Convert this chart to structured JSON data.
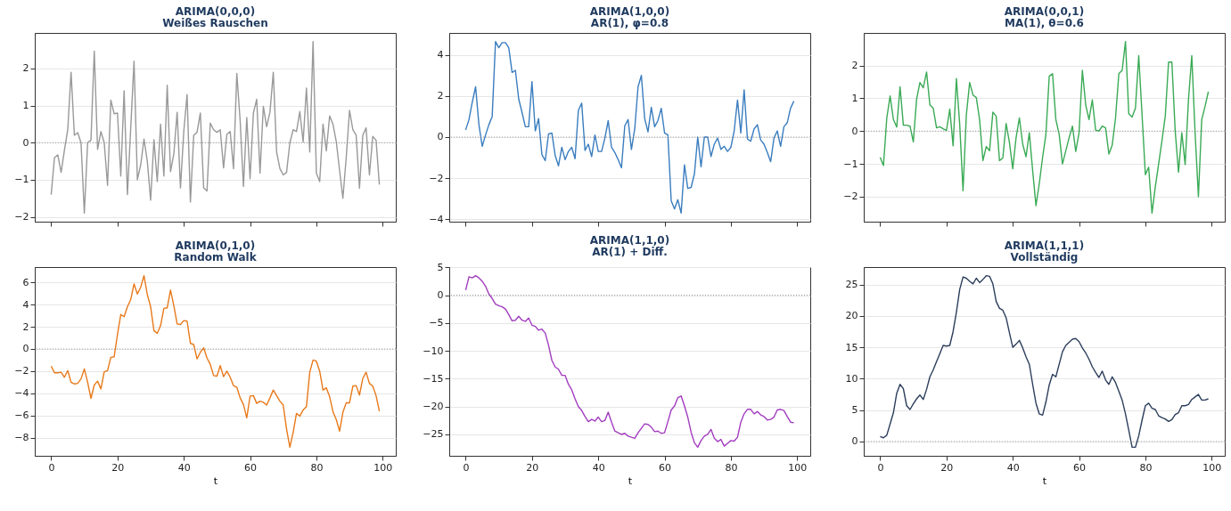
{
  "chart_data": [
    {
      "type": "line",
      "title": "ARIMA(0,0,0)",
      "subtitle": "Weißes Rauschen",
      "tick_labels": "y",
      "grid": "y",
      "xlim": [
        -4.95,
        103.95
      ],
      "xticks": [
        0,
        20,
        40,
        60,
        80,
        100
      ],
      "ylim": [
        -2.13,
        2.96
      ],
      "yticks": [
        -2,
        -1,
        0,
        1,
        2
      ],
      "ref_lines": [
        {
          "axis": "y",
          "value": 0,
          "color": "#888888",
          "line_style": "dotted"
        }
      ],
      "x": [
        0,
        1,
        2,
        3,
        4,
        5,
        6,
        7,
        8,
        9,
        10,
        11,
        12,
        13,
        14,
        15,
        16,
        17,
        18,
        19,
        20,
        21,
        22,
        23,
        24,
        25,
        26,
        27,
        28,
        29,
        30,
        31,
        32,
        33,
        34,
        35,
        36,
        37,
        38,
        39,
        40,
        41,
        42,
        43,
        44,
        45,
        46,
        47,
        48,
        49,
        50,
        51,
        52,
        53,
        54,
        55,
        56,
        57,
        58,
        59,
        60,
        61,
        62,
        63,
        64,
        65,
        66,
        67,
        68,
        69,
        70,
        71,
        72,
        73,
        74,
        75,
        76,
        77,
        78,
        79,
        80,
        81,
        82,
        83,
        84,
        85,
        86,
        87,
        88,
        89,
        90,
        91,
        92,
        93,
        94,
        95,
        96,
        97,
        98,
        99
      ],
      "series": [
        {
          "color": "#999999",
          "values": [
            -1.4,
            -0.4,
            -0.33,
            -0.8,
            -0.2,
            0.35,
            1.9,
            0.2,
            0.27,
            0.0,
            -1.9,
            0.0,
            0.07,
            2.47,
            -0.18,
            0.3,
            0.0,
            -1.15,
            1.15,
            0.78,
            0.8,
            -0.9,
            1.4,
            -1.4,
            0.4,
            2.2,
            -1.0,
            -0.6,
            0.1,
            -0.5,
            -1.55,
            0.08,
            -1.05,
            0.5,
            -0.9,
            1.55,
            -0.78,
            -0.3,
            0.82,
            -1.22,
            0.3,
            1.3,
            -1.6,
            0.2,
            0.28,
            0.8,
            -1.22,
            -1.3,
            0.53,
            0.35,
            0.28,
            0.35,
            -0.68,
            0.23,
            0.3,
            -0.7,
            1.87,
            0.6,
            -1.18,
            0.68,
            -0.97,
            0.8,
            1.17,
            -0.82,
            0.98,
            0.43,
            0.82,
            1.9,
            -0.25,
            -0.7,
            -0.87,
            -0.8,
            0.0,
            0.35,
            0.3,
            0.84,
            0.02,
            1.47,
            -0.25,
            2.73,
            -0.82,
            -1.05,
            0.5,
            -0.22,
            0.72,
            0.5,
            0.03,
            -0.75,
            -1.5,
            -0.4,
            0.87,
            0.35,
            0.2,
            -1.23,
            0.2,
            0.4,
            -0.87,
            0.17,
            0.07,
            -1.13
          ]
        }
      ]
    },
    {
      "type": "line",
      "title": "ARIMA(1,0,0)",
      "subtitle": "AR(1), φ=0.8",
      "tick_labels": "y",
      "grid": "y",
      "xlim": [
        -4.95,
        103.95
      ],
      "xticks": [
        0,
        20,
        40,
        60,
        80,
        100
      ],
      "ylim": [
        -4.12,
        5.07
      ],
      "yticks": [
        -4,
        -2,
        0,
        2,
        4
      ],
      "ref_lines": [
        {
          "axis": "y",
          "value": 0,
          "color": "#888888",
          "line_style": "dotted"
        }
      ],
      "x": [
        0,
        1,
        2,
        3,
        4,
        5,
        6,
        7,
        8,
        9,
        10,
        11,
        12,
        13,
        14,
        15,
        16,
        17,
        18,
        19,
        20,
        21,
        22,
        23,
        24,
        25,
        26,
        27,
        28,
        29,
        30,
        31,
        32,
        33,
        34,
        35,
        36,
        37,
        38,
        39,
        40,
        41,
        42,
        43,
        44,
        45,
        46,
        47,
        48,
        49,
        50,
        51,
        52,
        53,
        54,
        55,
        56,
        57,
        58,
        59,
        60,
        61,
        62,
        63,
        64,
        65,
        66,
        67,
        68,
        69,
        70,
        71,
        72,
        73,
        74,
        75,
        76,
        77,
        78,
        79,
        80,
        81,
        82,
        83,
        84,
        85,
        86,
        87,
        88,
        89,
        90,
        91,
        92,
        93,
        94,
        95,
        96,
        97,
        98,
        99
      ],
      "series": [
        {
          "color": "#3a7dbf",
          "values": [
            0.35,
            0.85,
            1.7,
            2.45,
            0.6,
            -0.45,
            0.1,
            0.6,
            1.0,
            4.65,
            4.35,
            4.6,
            4.6,
            4.35,
            3.15,
            3.25,
            1.85,
            1.2,
            0.5,
            0.5,
            2.7,
            0.3,
            0.9,
            -0.85,
            -1.15,
            0.15,
            0.2,
            -0.9,
            -1.4,
            -0.5,
            -1.1,
            -0.7,
            -0.5,
            -1.05,
            1.3,
            1.65,
            -0.65,
            -0.35,
            -0.95,
            0.1,
            -0.7,
            -0.7,
            -0.05,
            0.8,
            -0.5,
            -0.75,
            -1.1,
            -1.5,
            0.55,
            0.85,
            -0.6,
            0.4,
            2.45,
            3.0,
            0.9,
            0.25,
            1.45,
            0.5,
            0.8,
            1.4,
            0.2,
            0.1,
            -3.1,
            -3.5,
            -3.05,
            -3.7,
            -1.35,
            -2.5,
            -2.45,
            -1.8,
            0.0,
            -1.45,
            0.0,
            0.0,
            -0.95,
            -0.35,
            -0.05,
            -0.6,
            -0.45,
            -0.7,
            -0.5,
            0.3,
            1.8,
            0.2,
            2.3,
            -0.1,
            -0.2,
            0.4,
            0.6,
            -0.15,
            -0.35,
            -0.75,
            -1.2,
            -0.05,
            0.3,
            -0.45,
            0.5,
            0.7,
            1.4,
            1.75
          ]
        }
      ]
    },
    {
      "type": "line",
      "title": "ARIMA(0,0,1)",
      "subtitle": "MA(1), θ=0.6",
      "tick_labels": "y",
      "grid": "y",
      "xlim": [
        -4.95,
        103.95
      ],
      "xticks": [
        0,
        20,
        40,
        60,
        80,
        100
      ],
      "ylim": [
        -2.76,
        2.99
      ],
      "yticks": [
        -2,
        -1,
        0,
        1,
        2
      ],
      "ref_lines": [
        {
          "axis": "y",
          "value": 0,
          "color": "#888888",
          "line_style": "dotted"
        }
      ],
      "x": [
        0,
        1,
        2,
        3,
        4,
        5,
        6,
        7,
        8,
        9,
        10,
        11,
        12,
        13,
        14,
        15,
        16,
        17,
        18,
        19,
        20,
        21,
        22,
        23,
        24,
        25,
        26,
        27,
        28,
        29,
        30,
        31,
        32,
        33,
        34,
        35,
        36,
        37,
        38,
        39,
        40,
        41,
        42,
        43,
        44,
        45,
        46,
        47,
        48,
        49,
        50,
        51,
        52,
        53,
        54,
        55,
        56,
        57,
        58,
        59,
        60,
        61,
        62,
        63,
        64,
        65,
        66,
        67,
        68,
        69,
        70,
        71,
        72,
        73,
        74,
        75,
        76,
        77,
        78,
        79,
        80,
        81,
        82,
        83,
        84,
        85,
        86,
        87,
        88,
        89,
        90,
        91,
        92,
        93,
        94,
        95,
        96,
        97,
        98,
        99
      ],
      "series": [
        {
          "color": "#3aaa55",
          "values": [
            -0.8,
            -1.05,
            0.4,
            1.07,
            0.35,
            0.12,
            1.35,
            0.18,
            0.18,
            0.15,
            -0.33,
            0.98,
            1.48,
            1.32,
            1.8,
            0.8,
            0.7,
            0.1,
            0.13,
            0.07,
            0.02,
            0.67,
            -0.45,
            1.6,
            0.2,
            -1.82,
            0.5,
            1.48,
            1.1,
            1.02,
            0.35,
            -0.9,
            -0.47,
            -0.6,
            0.58,
            0.45,
            -0.9,
            -0.82,
            0.23,
            -0.35,
            -1.15,
            -0.2,
            0.4,
            -0.4,
            -0.78,
            -0.05,
            -1.2,
            -2.27,
            -1.6,
            -0.8,
            -0.1,
            1.67,
            1.75,
            0.35,
            -0.1,
            -1.0,
            -0.6,
            -0.2,
            0.15,
            -0.62,
            -0.05,
            1.85,
            0.8,
            0.35,
            0.95,
            0.03,
            0.0,
            0.15,
            0.1,
            -0.7,
            -0.43,
            0.4,
            1.75,
            1.85,
            2.73,
            0.53,
            0.43,
            0.7,
            2.3,
            0.5,
            -1.33,
            -1.1,
            -2.5,
            -1.7,
            -1.0,
            -0.3,
            0.45,
            2.1,
            2.1,
            0.0,
            -1.25,
            -0.05,
            -1.02,
            0.95,
            2.3,
            -0.05,
            -2.0,
            0.35,
            0.75,
            1.2
          ]
        }
      ]
    },
    {
      "type": "line",
      "title": "ARIMA(0,1,0)",
      "subtitle": "Random Walk",
      "xlabel": "t",
      "grid": "y",
      "xlim": [
        -4.95,
        103.95
      ],
      "xticks": [
        0,
        20,
        40,
        60,
        80,
        100
      ],
      "ylim": [
        -9.62,
        7.37
      ],
      "yticks": [
        -8,
        -6,
        -4,
        -2,
        0,
        2,
        4,
        6
      ],
      "ref_lines": [
        {
          "axis": "y",
          "value": 0,
          "color": "#888888",
          "line_style": "dotted"
        }
      ],
      "x": [
        0,
        1,
        2,
        3,
        4,
        5,
        6,
        7,
        8,
        9,
        10,
        11,
        12,
        13,
        14,
        15,
        16,
        17,
        18,
        19,
        20,
        21,
        22,
        23,
        24,
        25,
        26,
        27,
        28,
        29,
        30,
        31,
        32,
        33,
        34,
        35,
        36,
        37,
        38,
        39,
        40,
        41,
        42,
        43,
        44,
        45,
        46,
        47,
        48,
        49,
        50,
        51,
        52,
        53,
        54,
        55,
        56,
        57,
        58,
        59,
        60,
        61,
        62,
        63,
        64,
        65,
        66,
        67,
        68,
        69,
        70,
        71,
        72,
        73,
        74,
        75,
        76,
        77,
        78,
        79,
        80,
        81,
        82,
        83,
        84,
        85,
        86,
        87,
        88,
        89,
        90,
        91,
        92,
        93,
        94,
        95,
        96,
        97,
        98,
        99
      ],
      "series": [
        {
          "color": "#e8791a",
          "values": [
            -1.55,
            -2.15,
            -2.15,
            -2.1,
            -2.55,
            -1.95,
            -3.0,
            -3.15,
            -3.1,
            -2.7,
            -1.8,
            -3.0,
            -4.45,
            -3.25,
            -2.9,
            -3.6,
            -2.05,
            -1.95,
            -0.75,
            -0.7,
            1.3,
            3.1,
            2.9,
            3.8,
            4.45,
            5.85,
            4.95,
            5.55,
            6.6,
            4.9,
            3.8,
            1.65,
            1.4,
            2.1,
            3.65,
            3.7,
            5.3,
            3.9,
            2.25,
            2.2,
            2.55,
            2.5,
            0.5,
            0.4,
            -0.9,
            -0.3,
            0.1,
            -0.8,
            -1.4,
            -2.4,
            -2.45,
            -1.5,
            -2.5,
            -2.0,
            -2.55,
            -3.3,
            -3.45,
            -4.4,
            -5.0,
            -6.2,
            -4.25,
            -4.2,
            -4.9,
            -4.7,
            -4.8,
            -5.05,
            -4.4,
            -3.7,
            -4.2,
            -4.7,
            -5.05,
            -7.2,
            -8.85,
            -7.5,
            -5.8,
            -6.05,
            -5.5,
            -5.2,
            -2.1,
            -1.0,
            -1.1,
            -2.0,
            -3.7,
            -3.5,
            -4.3,
            -5.65,
            -6.35,
            -7.4,
            -5.7,
            -4.85,
            -4.85,
            -3.35,
            -3.3,
            -4.15,
            -2.65,
            -2.1,
            -3.1,
            -3.35,
            -4.2,
            -5.6
          ]
        }
      ]
    },
    {
      "type": "line",
      "title": "ARIMA(1,1,0)",
      "subtitle": "AR(1) + Diff.",
      "xlabel": "t",
      "grid": "y",
      "xlim": [
        -4.95,
        103.95
      ],
      "xticks": [
        0,
        20,
        40,
        60,
        80,
        100
      ],
      "ylim": [
        -28.84,
        5.04
      ],
      "yticks": [
        -25,
        -20,
        -15,
        -10,
        -5,
        0,
        5
      ],
      "ref_lines": [
        {
          "axis": "y",
          "value": 0,
          "color": "#888888",
          "line_style": "dotted"
        }
      ],
      "x": [
        0,
        1,
        2,
        3,
        4,
        5,
        6,
        7,
        8,
        9,
        10,
        11,
        12,
        13,
        14,
        15,
        16,
        17,
        18,
        19,
        20,
        21,
        22,
        23,
        24,
        25,
        26,
        27,
        28,
        29,
        30,
        31,
        32,
        33,
        34,
        35,
        36,
        37,
        38,
        39,
        40,
        41,
        42,
        43,
        44,
        45,
        46,
        47,
        48,
        49,
        50,
        51,
        52,
        53,
        54,
        55,
        56,
        57,
        58,
        59,
        60,
        61,
        62,
        63,
        64,
        65,
        66,
        67,
        68,
        69,
        70,
        71,
        72,
        73,
        74,
        75,
        76,
        77,
        78,
        79,
        80,
        81,
        82,
        83,
        84,
        85,
        86,
        87,
        88,
        89,
        90,
        91,
        92,
        93,
        94,
        95,
        96,
        97,
        98,
        99
      ],
      "series": [
        {
          "color": "#a23dbf",
          "values": [
            0.9,
            3.3,
            3.1,
            3.5,
            3.1,
            2.5,
            1.6,
            0.2,
            -0.6,
            -1.6,
            -1.9,
            -2.1,
            -2.5,
            -3.5,
            -4.6,
            -4.5,
            -3.8,
            -4.5,
            -4.7,
            -4.1,
            -5.4,
            -5.6,
            -6.3,
            -6.1,
            -6.8,
            -9.0,
            -11.7,
            -12.9,
            -13.3,
            -14.4,
            -14.4,
            -16.0,
            -17.0,
            -18.6,
            -20.0,
            -20.7,
            -21.8,
            -22.7,
            -22.3,
            -22.6,
            -21.9,
            -22.7,
            -22.5,
            -21.0,
            -22.8,
            -24.4,
            -24.7,
            -25.0,
            -24.8,
            -25.3,
            -25.5,
            -25.7,
            -24.7,
            -23.9,
            -23.1,
            -23.2,
            -23.7,
            -24.5,
            -24.4,
            -24.8,
            -24.7,
            -22.7,
            -20.6,
            -19.9,
            -18.4,
            -18.1,
            -19.9,
            -21.9,
            -24.6,
            -26.5,
            -27.3,
            -26.1,
            -25.3,
            -25.0,
            -24.1,
            -25.7,
            -26.3,
            -25.9,
            -27.1,
            -26.6,
            -26.1,
            -26.2,
            -25.5,
            -22.8,
            -21.3,
            -20.5,
            -20.5,
            -21.3,
            -20.9,
            -21.5,
            -21.8,
            -22.4,
            -22.3,
            -21.9,
            -20.6,
            -20.5,
            -20.7,
            -21.8,
            -22.8,
            -22.9
          ]
        }
      ]
    },
    {
      "type": "line",
      "title": "ARIMA(1,1,1)",
      "subtitle": "Vollständig",
      "xlabel": "t",
      "grid": "y",
      "xlim": [
        -4.95,
        103.95
      ],
      "xticks": [
        0,
        20,
        40,
        60,
        80,
        100
      ],
      "ylim": [
        -2.27,
        27.77
      ],
      "yticks": [
        0,
        5,
        10,
        15,
        20,
        25
      ],
      "ref_lines": [
        {
          "axis": "y",
          "value": 0,
          "color": "#888888",
          "line_style": "dotted"
        }
      ],
      "x": [
        0,
        1,
        2,
        3,
        4,
        5,
        6,
        7,
        8,
        9,
        10,
        11,
        12,
        13,
        14,
        15,
        16,
        17,
        18,
        19,
        20,
        21,
        22,
        23,
        24,
        25,
        26,
        27,
        28,
        29,
        30,
        31,
        32,
        33,
        34,
        35,
        36,
        37,
        38,
        39,
        40,
        41,
        42,
        43,
        44,
        45,
        46,
        47,
        48,
        49,
        50,
        51,
        52,
        53,
        54,
        55,
        56,
        57,
        58,
        59,
        60,
        61,
        62,
        63,
        64,
        65,
        66,
        67,
        68,
        69,
        70,
        71,
        72,
        73,
        74,
        75,
        76,
        77,
        78,
        79,
        80,
        81,
        82,
        83,
        84,
        85,
        86,
        87,
        88,
        89,
        90,
        91,
        92,
        93,
        94,
        95,
        96,
        97,
        98,
        99
      ],
      "series": [
        {
          "color": "#2c3e5c",
          "values": [
            0.8,
            0.6,
            1.0,
            2.8,
            4.6,
            7.7,
            9.1,
            8.4,
            5.7,
            5.1,
            6.0,
            6.8,
            7.4,
            6.7,
            8.3,
            10.3,
            11.4,
            12.7,
            14.0,
            15.3,
            15.2,
            15.3,
            17.5,
            20.6,
            24.2,
            26.2,
            26.0,
            25.5,
            25.1,
            26.0,
            25.3,
            25.8,
            26.4,
            26.3,
            25.1,
            22.3,
            21.2,
            20.9,
            19.7,
            17.3,
            15.0,
            15.5,
            16.1,
            14.9,
            13.5,
            12.3,
            9.1,
            6.1,
            4.4,
            4.2,
            6.3,
            9.0,
            10.7,
            10.3,
            12.3,
            14.3,
            15.3,
            15.8,
            16.3,
            16.4,
            15.9,
            14.9,
            14.1,
            13.1,
            11.9,
            11.0,
            10.2,
            11.2,
            9.8,
            9.1,
            10.3,
            9.4,
            8.0,
            6.6,
            4.4,
            1.8,
            -0.9,
            -0.9,
            0.9,
            3.4,
            5.7,
            6.1,
            5.3,
            5.1,
            4.1,
            3.8,
            3.6,
            3.2,
            3.5,
            4.3,
            4.6,
            5.7,
            5.7,
            5.9,
            6.7,
            7.1,
            7.5,
            6.6,
            6.6,
            6.8
          ]
        }
      ]
    }
  ]
}
